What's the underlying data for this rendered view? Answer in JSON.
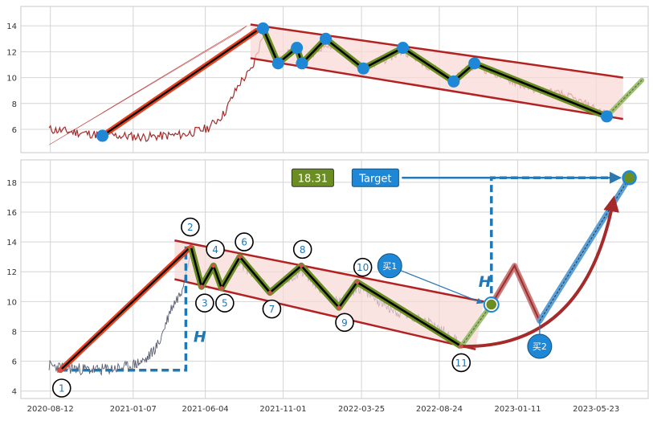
{
  "chart_data": [
    {
      "type": "line",
      "panel": "top",
      "y_ticks": [
        6,
        8,
        10,
        12,
        14
      ],
      "ylim": [
        4.2,
        15.5
      ],
      "grid": true,
      "price_color": "#a52a2a",
      "waves": [
        {
          "x": 0.13,
          "y": 5.5
        },
        {
          "x": 0.386,
          "y": 13.8
        },
        {
          "x": 0.41,
          "y": 11.1
        },
        {
          "x": 0.44,
          "y": 12.3
        },
        {
          "x": 0.448,
          "y": 11.1
        },
        {
          "x": 0.486,
          "y": 13.0
        },
        {
          "x": 0.546,
          "y": 10.7
        },
        {
          "x": 0.609,
          "y": 12.3
        },
        {
          "x": 0.69,
          "y": 9.7
        },
        {
          "x": 0.723,
          "y": 11.1
        },
        {
          "x": 0.934,
          "y": 7.0
        }
      ],
      "projection": [
        {
          "x": 0.934,
          "y": 7.0
        },
        {
          "x": 0.99,
          "y": 9.8
        }
      ],
      "channel": {
        "upper": [
          {
            "x": 0.366,
            "y": 14.1
          },
          {
            "x": 0.96,
            "y": 10.0
          }
        ],
        "lower": [
          {
            "x": 0.366,
            "y": 11.5
          },
          {
            "x": 0.96,
            "y": 6.8
          }
        ]
      }
    },
    {
      "type": "line",
      "panel": "bottom",
      "x_ticks": [
        "2020-08-12",
        "2021-01-07",
        "2021-06-04",
        "2021-11-01",
        "2022-03-25",
        "2022-08-24",
        "2023-01-11",
        "2023-05-23"
      ],
      "y_ticks": [
        4,
        6,
        8,
        10,
        12,
        14,
        16,
        18
      ],
      "ylim": [
        3.5,
        19.5
      ],
      "grid": true,
      "price_color": "#5a5f73",
      "waves": [
        {
          "label": "1",
          "x": 0.063,
          "y": 5.4
        },
        {
          "label": "2",
          "x": 0.271,
          "y": 13.7
        },
        {
          "label": "3",
          "x": 0.288,
          "y": 11.0
        },
        {
          "label": "4",
          "x": 0.307,
          "y": 12.4
        },
        {
          "label": "5",
          "x": 0.32,
          "y": 10.9
        },
        {
          "label": "6",
          "x": 0.349,
          "y": 13.0
        },
        {
          "label": "7",
          "x": 0.397,
          "y": 10.6
        },
        {
          "label": "8",
          "x": 0.447,
          "y": 12.4
        },
        {
          "label": "9",
          "x": 0.507,
          "y": 9.6
        },
        {
          "label": "10",
          "x": 0.536,
          "y": 11.3
        },
        {
          "label": "11",
          "x": 0.702,
          "y": 7.0
        }
      ],
      "label_positions": [
        {
          "x": 0.065,
          "y": 4.2
        },
        {
          "x": 0.27,
          "y": 15.0
        },
        {
          "x": 0.293,
          "y": 9.9
        },
        {
          "x": 0.31,
          "y": 13.5
        },
        {
          "x": 0.325,
          "y": 9.9
        },
        {
          "x": 0.356,
          "y": 14.0
        },
        {
          "x": 0.4,
          "y": 9.5
        },
        {
          "x": 0.449,
          "y": 13.5
        },
        {
          "x": 0.516,
          "y": 8.6
        },
        {
          "x": 0.545,
          "y": 12.3
        },
        {
          "x": 0.702,
          "y": 5.9
        }
      ],
      "projection": [
        {
          "x": 0.702,
          "y": 7.0
        },
        {
          "x": 0.75,
          "y": 9.8
        }
      ],
      "channel": {
        "upper": [
          {
            "x": 0.245,
            "y": 14.1
          },
          {
            "x": 0.738,
            "y": 10.0
          }
        ],
        "lower": [
          {
            "x": 0.245,
            "y": 11.5
          },
          {
            "x": 0.725,
            "y": 6.8
          }
        ]
      },
      "measured_move_label": "H",
      "target_value": 18.31,
      "target_value_label": "18.31",
      "target_label": "Target",
      "target_point": {
        "x": 0.97,
        "y": 18.3
      },
      "buy_labels": {
        "buy1": "买1",
        "buy2": "买2"
      },
      "buy1_point": {
        "x": 0.75,
        "y": 9.8
      },
      "buy2_point": {
        "x": 0.827,
        "y": 8.7
      },
      "pullback_path": [
        {
          "x": 0.75,
          "y": 9.8
        },
        {
          "x": 0.787,
          "y": 12.4
        },
        {
          "x": 0.827,
          "y": 8.7
        }
      ],
      "accent_colors": {
        "wave_line": "#000000",
        "wave_glow": "#6b8e23",
        "channel": "#b22222",
        "channel_fill": "#f8d9d6",
        "marker": "#1e88d6",
        "impulse": "#e8401c",
        "target_box": "#1e88d6",
        "value_box": "#6b8e23",
        "arrow": "#2878b4",
        "curve": "#a52a2a"
      }
    }
  ]
}
